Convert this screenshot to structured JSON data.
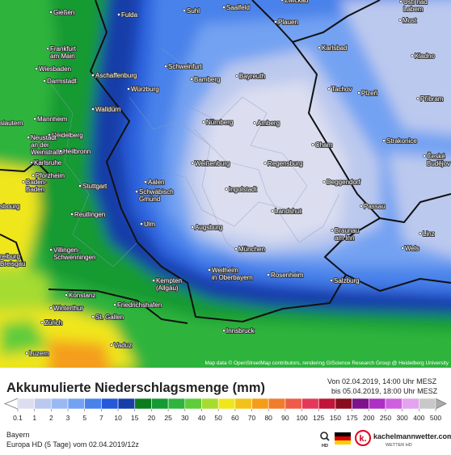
{
  "map": {
    "cities": [
      {
        "lines": [
          "Gießen"
        ]
      },
      {
        "lines": [
          "Fulda"
        ]
      },
      {
        "lines": [
          "Suhl"
        ]
      },
      {
        "lines": [
          "Saalfeld"
        ]
      },
      {
        "lines": [
          "Zwickau"
        ]
      },
      {
        "lines": [
          "Ústí nad",
          "Labem"
        ]
      },
      {
        "lines": [
          "Most"
        ]
      },
      {
        "lines": [
          "Plauen"
        ]
      },
      {
        "lines": [
          "Frankfurt",
          "am Main"
        ]
      },
      {
        "lines": [
          "Wiesbaden"
        ]
      },
      {
        "lines": [
          "Darmstadt"
        ]
      },
      {
        "lines": [
          "Aschaffenburg"
        ]
      },
      {
        "lines": [
          "Schweinfurt"
        ]
      },
      {
        "lines": [
          "Bayreuth"
        ]
      },
      {
        "lines": [
          "Bamberg"
        ]
      },
      {
        "lines": [
          "Karlsbad"
        ]
      },
      {
        "lines": [
          "Kladno"
        ]
      },
      {
        "lines": [
          "Würzburg"
        ]
      },
      {
        "lines": [
          "Tachov"
        ]
      },
      {
        "lines": [
          "Plzeň"
        ]
      },
      {
        "lines": [
          "Příbram"
        ]
      },
      {
        "lines": [
          "Walldürn"
        ]
      },
      {
        "lines": [
          "Mannheim"
        ]
      },
      {
        "lines": [
          "slautern"
        ]
      },
      {
        "lines": [
          "Heidelberg"
        ]
      },
      {
        "lines": [
          "Neustadt",
          "an der",
          "Weinstraße"
        ]
      },
      {
        "lines": [
          "Nürnberg"
        ]
      },
      {
        "lines": [
          "Amberg"
        ]
      },
      {
        "lines": [
          "Heilbronn"
        ]
      },
      {
        "lines": [
          "Cham"
        ]
      },
      {
        "lines": [
          "Strakonice"
        ]
      },
      {
        "lines": [
          "Karlsruhe"
        ]
      },
      {
        "lines": [
          "České",
          "Budějov"
        ]
      },
      {
        "lines": [
          "Weißenburg"
        ]
      },
      {
        "lines": [
          "Regensburg"
        ]
      },
      {
        "lines": [
          "Pforzheim"
        ]
      },
      {
        "lines": [
          "Aalen"
        ]
      },
      {
        "lines": [
          "Stuttgart"
        ]
      },
      {
        "lines": [
          "Deggendorf"
        ]
      },
      {
        "lines": [
          "Baden-",
          "Baden"
        ]
      },
      {
        "lines": [
          "Schwäbisch",
          "Gmünd"
        ]
      },
      {
        "lines": [
          "Ingolstadt"
        ]
      },
      {
        "lines": [
          "Passau"
        ]
      },
      {
        "lines": [
          "Landshut"
        ]
      },
      {
        "lines": [
          "Reutlingen"
        ]
      },
      {
        "lines": [
          "Ulm"
        ]
      },
      {
        "lines": [
          "Augsburg"
        ]
      },
      {
        "lines": [
          "Braunau",
          "am Inn"
        ]
      },
      {
        "lines": [
          "Linz"
        ]
      },
      {
        "lines": [
          "Wels"
        ]
      },
      {
        "lines": [
          "reiburg",
          "Breisgau"
        ]
      },
      {
        "lines": [
          "Villingen-",
          "Schwenningen"
        ]
      },
      {
        "lines": [
          "München"
        ]
      },
      {
        "lines": [
          "Weilheim",
          "in Oberbayern"
        ]
      },
      {
        "lines": [
          "Rosenheim"
        ]
      },
      {
        "lines": [
          "Kempten",
          "(Allgäu)"
        ]
      },
      {
        "lines": [
          "Salzburg"
        ]
      },
      {
        "lines": [
          "Konstanz"
        ]
      },
      {
        "lines": [
          "Friedrichshafen"
        ]
      },
      {
        "lines": [
          "Winterthur"
        ]
      },
      {
        "lines": [
          "St. Gallen"
        ]
      },
      {
        "lines": [
          "Zürich"
        ]
      },
      {
        "lines": [
          "Innsbruck"
        ]
      },
      {
        "lines": [
          "Vaduz"
        ]
      },
      {
        "lines": [
          "Luzern"
        ]
      },
      {
        "lines": [
          "sbourg"
        ]
      }
    ],
    "attribution": "Map data © OpenStreetMap contributors, rendering GIScience Research Group @ Heidelberg University"
  },
  "legend": {
    "title": "Akkumulierte Niederschlagsmenge (mm)",
    "from": "Von 02.04.2019, 14:00 Uhr MESZ",
    "to": "bis 05.04.2019, 18:00 Uhr MESZ",
    "labels": [
      0.1,
      1,
      2,
      3,
      5,
      7,
      10,
      15,
      20,
      25,
      30,
      40,
      50,
      60,
      70,
      80,
      90,
      100,
      125,
      150,
      175,
      200,
      250,
      300,
      400,
      500
    ],
    "colors": [
      "#dcdef0",
      "#bcc9ee",
      "#9ab8f2",
      "#73a2f2",
      "#4a82ea",
      "#2459d8",
      "#173da8",
      "#0b7d1e",
      "#149a32",
      "#2fb43e",
      "#5fcc3a",
      "#a6dc30",
      "#f0e61c",
      "#f3c21a",
      "#f59d1a",
      "#f07c2c",
      "#ec5c48",
      "#e4385a",
      "#c0143a",
      "#8a0c1e",
      "#7e128a",
      "#ad2fc6",
      "#cf5fde",
      "#e3a3f0",
      "#c8c8c8"
    ]
  },
  "footer": {
    "region": "Bayern",
    "model": "Europa HD (5 Tage) vom 02.04.2019/12z",
    "brand": "kachelmannwetter.com",
    "brand_sub": "WETTER HD",
    "hd": "HD"
  }
}
